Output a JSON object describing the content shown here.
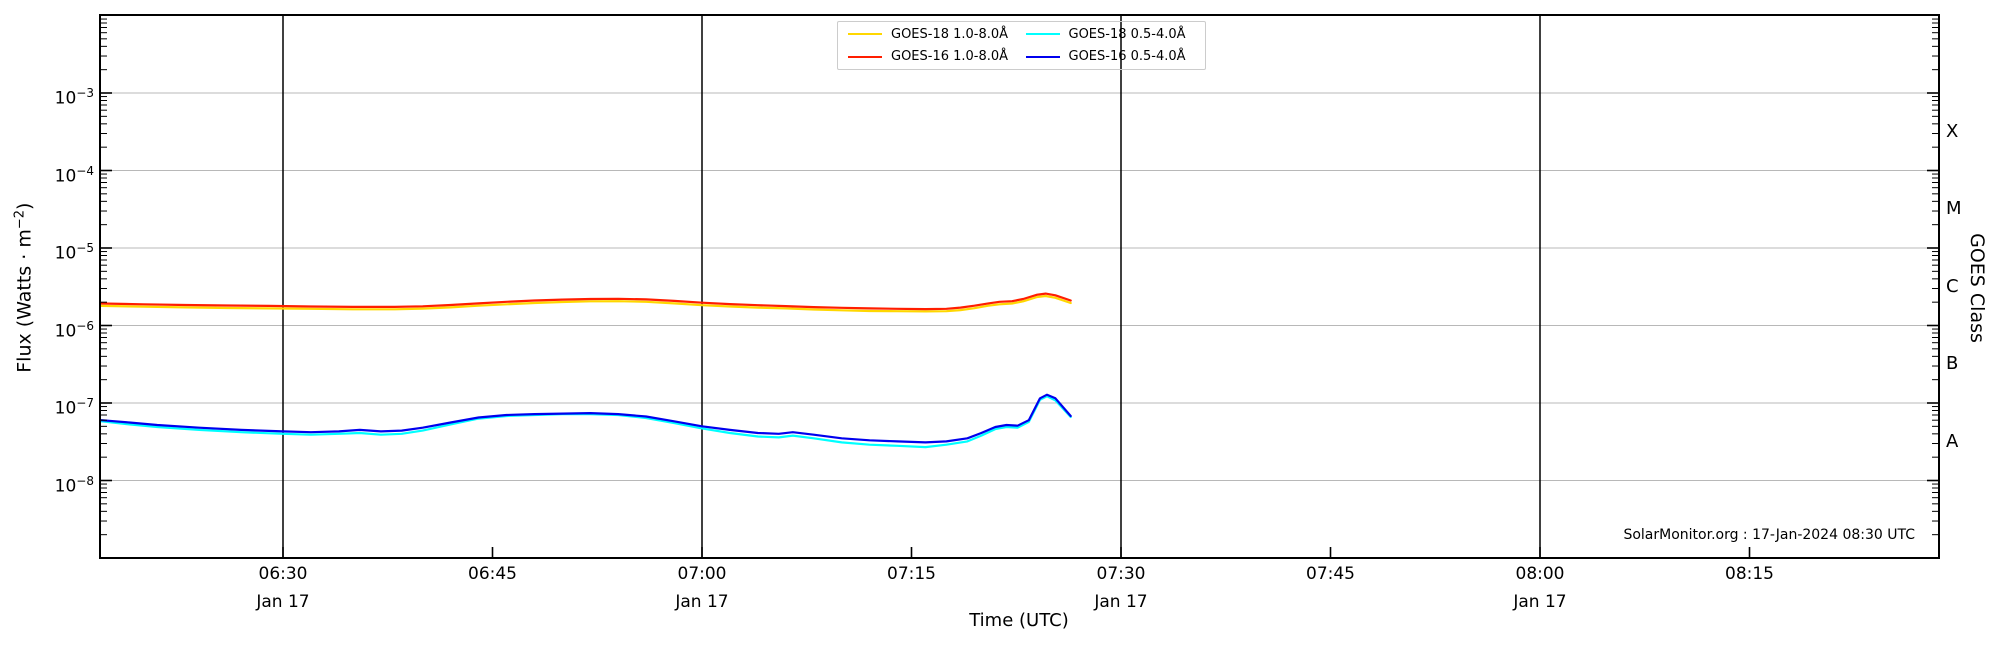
{
  "branding": {
    "annotation": "SolarMonitor.org : 17-Jan-2024 08:30 UTC"
  },
  "chart_data": {
    "type": "line",
    "title": "",
    "xlabel": "Time (UTC)",
    "ylabel": {
      "pre": "Flux (Watts · m",
      "sup_exp": "−2",
      "post": ")"
    },
    "y2label": "GOES Class",
    "x_unit": "minutes after 06:00 UTC",
    "x_domain_minutes": [
      16.9,
      148.6
    ],
    "y_domain_log10": [
      -9.0,
      -1.99
    ],
    "grid": "horizontal decades, vertical lines every 30 min",
    "legend_position": "top center, 2 columns",
    "x_ticks": [
      {
        "t": 30,
        "label": "06:30",
        "date": "Jan 17",
        "vline": true
      },
      {
        "t": 45,
        "label": "06:45",
        "date": null,
        "vline": false
      },
      {
        "t": 60,
        "label": "07:00",
        "date": "Jan 17",
        "vline": true
      },
      {
        "t": 75,
        "label": "07:15",
        "date": null,
        "vline": false
      },
      {
        "t": 90,
        "label": "07:30",
        "date": "Jan 17",
        "vline": true
      },
      {
        "t": 105,
        "label": "07:45",
        "date": null,
        "vline": false
      },
      {
        "t": 120,
        "label": "08:00",
        "date": "Jan 17",
        "vline": true
      },
      {
        "t": 135,
        "label": "08:15",
        "date": null,
        "vline": false
      }
    ],
    "y_ticks_exp": [
      -3,
      -4,
      -5,
      -6,
      -7,
      -8
    ],
    "goes_class_bands": [
      {
        "label": "X",
        "log10_center": -3.5
      },
      {
        "label": "M",
        "log10_center": -4.5
      },
      {
        "label": "C",
        "log10_center": -5.5
      },
      {
        "label": "B",
        "log10_center": -6.5
      },
      {
        "label": "A",
        "log10_center": -7.5
      }
    ],
    "legend": {
      "items": [
        {
          "label": "GOES-18 1.0-8.0Å",
          "color": "#ffd700"
        },
        {
          "label": "GOES-16 1.0-8.0Å",
          "color": "#ff1e00"
        },
        {
          "label": "GOES-18 0.5-4.0Å",
          "color": "#00ffff"
        },
        {
          "label": "GOES-16 0.5-4.0Å",
          "color": "#0000ee"
        }
      ]
    },
    "series": [
      {
        "name": "GOES-18 1.0-8.0Å",
        "color": "#ffd700",
        "points": [
          [
            17,
            1.79e-06
          ],
          [
            20,
            1.75e-06
          ],
          [
            23,
            1.71e-06
          ],
          [
            26,
            1.68e-06
          ],
          [
            29,
            1.66e-06
          ],
          [
            32,
            1.64e-06
          ],
          [
            35,
            1.62e-06
          ],
          [
            38,
            1.62e-06
          ],
          [
            40,
            1.65e-06
          ],
          [
            42,
            1.71e-06
          ],
          [
            44,
            1.8e-06
          ],
          [
            46,
            1.88e-06
          ],
          [
            48,
            1.95e-06
          ],
          [
            50,
            2.01e-06
          ],
          [
            52,
            2.05e-06
          ],
          [
            54,
            2.06e-06
          ],
          [
            56,
            2.02e-06
          ],
          [
            58,
            1.93e-06
          ],
          [
            60,
            1.83e-06
          ],
          [
            62,
            1.76e-06
          ],
          [
            64,
            1.7e-06
          ],
          [
            66,
            1.66e-06
          ],
          [
            68,
            1.61e-06
          ],
          [
            70,
            1.57e-06
          ],
          [
            72,
            1.54e-06
          ],
          [
            74,
            1.53e-06
          ],
          [
            76,
            1.52e-06
          ],
          [
            77.5,
            1.53e-06
          ],
          [
            78.5,
            1.58e-06
          ],
          [
            79.5,
            1.67e-06
          ],
          [
            80.5,
            1.8e-06
          ],
          [
            81.3,
            1.88e-06
          ],
          [
            82.2,
            1.92e-06
          ],
          [
            83,
            2.05e-06
          ],
          [
            84,
            2.33e-06
          ],
          [
            84.6,
            2.4e-06
          ],
          [
            85.3,
            2.28e-06
          ],
          [
            86.4,
            1.95e-06
          ]
        ]
      },
      {
        "name": "GOES-16 1.0-8.0Å",
        "color": "#ff1e00",
        "points": [
          [
            17,
            1.92e-06
          ],
          [
            20,
            1.88e-06
          ],
          [
            23,
            1.84e-06
          ],
          [
            26,
            1.81e-06
          ],
          [
            29,
            1.79e-06
          ],
          [
            32,
            1.76e-06
          ],
          [
            35,
            1.74e-06
          ],
          [
            38,
            1.74e-06
          ],
          [
            40,
            1.77e-06
          ],
          [
            42,
            1.84e-06
          ],
          [
            44,
            1.93e-06
          ],
          [
            46,
            2.02e-06
          ],
          [
            48,
            2.1e-06
          ],
          [
            50,
            2.16e-06
          ],
          [
            52,
            2.2e-06
          ],
          [
            54,
            2.21e-06
          ],
          [
            56,
            2.17e-06
          ],
          [
            58,
            2.08e-06
          ],
          [
            60,
            1.97e-06
          ],
          [
            62,
            1.89e-06
          ],
          [
            64,
            1.83e-06
          ],
          [
            66,
            1.78e-06
          ],
          [
            68,
            1.73e-06
          ],
          [
            70,
            1.69e-06
          ],
          [
            72,
            1.66e-06
          ],
          [
            74,
            1.64e-06
          ],
          [
            76,
            1.63e-06
          ],
          [
            77.5,
            1.64e-06
          ],
          [
            78.5,
            1.7e-06
          ],
          [
            79.5,
            1.8e-06
          ],
          [
            80.5,
            1.93e-06
          ],
          [
            81.3,
            2.02e-06
          ],
          [
            82.2,
            2.06e-06
          ],
          [
            83,
            2.2e-06
          ],
          [
            84,
            2.5e-06
          ],
          [
            84.6,
            2.58e-06
          ],
          [
            85.3,
            2.45e-06
          ],
          [
            86.4,
            2.1e-06
          ]
        ]
      },
      {
        "name": "GOES-18 0.5-4.0Å",
        "color": "#00ffff",
        "points": [
          [
            17,
            5.8e-08
          ],
          [
            19,
            5.3e-08
          ],
          [
            21,
            4.9e-08
          ],
          [
            24,
            4.5e-08
          ],
          [
            27,
            4.2e-08
          ],
          [
            30,
            4e-08
          ],
          [
            32,
            3.9e-08
          ],
          [
            34,
            4e-08
          ],
          [
            35.5,
            4.1e-08
          ],
          [
            37,
            3.9e-08
          ],
          [
            38.5,
            4e-08
          ],
          [
            40,
            4.4e-08
          ],
          [
            42,
            5.3e-08
          ],
          [
            44,
            6.3e-08
          ],
          [
            46,
            6.8e-08
          ],
          [
            48,
            7e-08
          ],
          [
            50,
            7.2e-08
          ],
          [
            52,
            7.2e-08
          ],
          [
            54,
            7e-08
          ],
          [
            56,
            6.4e-08
          ],
          [
            58,
            5.5e-08
          ],
          [
            60,
            4.7e-08
          ],
          [
            62,
            4.1e-08
          ],
          [
            64,
            3.7e-08
          ],
          [
            65.5,
            3.6e-08
          ],
          [
            66.5,
            3.8e-08
          ],
          [
            68,
            3.5e-08
          ],
          [
            70,
            3.1e-08
          ],
          [
            72,
            2.9e-08
          ],
          [
            74,
            2.8e-08
          ],
          [
            76,
            2.7e-08
          ],
          [
            77.5,
            2.9e-08
          ],
          [
            79,
            3.2e-08
          ],
          [
            80,
            3.8e-08
          ],
          [
            81,
            4.6e-08
          ],
          [
            81.8,
            4.9e-08
          ],
          [
            82.6,
            4.8e-08
          ],
          [
            83.4,
            5.7e-08
          ],
          [
            84.2,
            1.1e-07
          ],
          [
            84.7,
            1.22e-07
          ],
          [
            85.3,
            1.08e-07
          ],
          [
            86.4,
            6.6e-08
          ]
        ]
      },
      {
        "name": "GOES-16 0.5-4.0Å",
        "color": "#0000ee",
        "points": [
          [
            17,
            6e-08
          ],
          [
            19,
            5.6e-08
          ],
          [
            21,
            5.2e-08
          ],
          [
            24,
            4.8e-08
          ],
          [
            27,
            4.5e-08
          ],
          [
            30,
            4.3e-08
          ],
          [
            32,
            4.2e-08
          ],
          [
            34,
            4.3e-08
          ],
          [
            35.5,
            4.5e-08
          ],
          [
            37,
            4.3e-08
          ],
          [
            38.5,
            4.4e-08
          ],
          [
            40,
            4.8e-08
          ],
          [
            42,
            5.6e-08
          ],
          [
            44,
            6.5e-08
          ],
          [
            46,
            7e-08
          ],
          [
            48,
            7.2e-08
          ],
          [
            50,
            7.3e-08
          ],
          [
            52,
            7.4e-08
          ],
          [
            54,
            7.2e-08
          ],
          [
            56,
            6.7e-08
          ],
          [
            58,
            5.8e-08
          ],
          [
            60,
            5e-08
          ],
          [
            62,
            4.5e-08
          ],
          [
            64,
            4.1e-08
          ],
          [
            65.5,
            4e-08
          ],
          [
            66.5,
            4.2e-08
          ],
          [
            68,
            3.9e-08
          ],
          [
            70,
            3.5e-08
          ],
          [
            72,
            3.3e-08
          ],
          [
            74,
            3.2e-08
          ],
          [
            76,
            3.1e-08
          ],
          [
            77.5,
            3.2e-08
          ],
          [
            79,
            3.5e-08
          ],
          [
            80,
            4.1e-08
          ],
          [
            81,
            4.9e-08
          ],
          [
            81.8,
            5.2e-08
          ],
          [
            82.6,
            5.1e-08
          ],
          [
            83.4,
            6e-08
          ],
          [
            84.2,
            1.15e-07
          ],
          [
            84.7,
            1.28e-07
          ],
          [
            85.3,
            1.15e-07
          ],
          [
            86.4,
            6.8e-08
          ]
        ]
      }
    ],
    "colors": {
      "grid": "#b8b8b8",
      "axis": "#000000",
      "vline": "#000000",
      "legend_border": "#cccccc"
    }
  }
}
